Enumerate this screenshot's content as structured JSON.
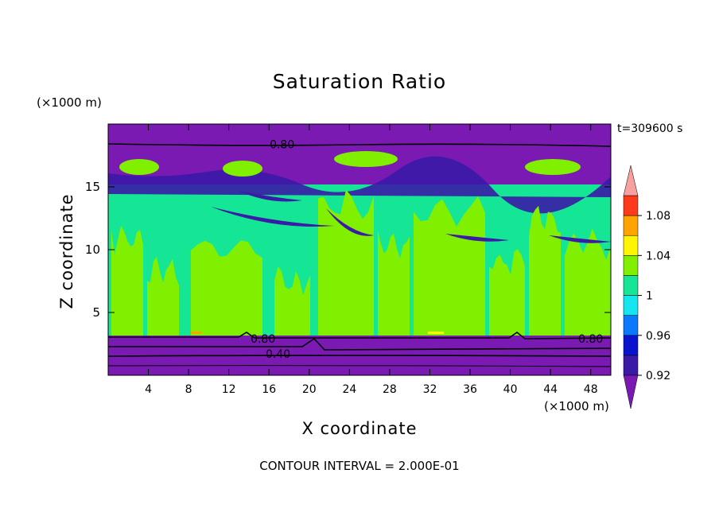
{
  "chart_data": {
    "type": "heatmap",
    "title": "Saturation Ratio",
    "xlabel": "X coordinate",
    "ylabel": "Z coordinate",
    "x_unit": "(×1000 m)",
    "y_unit": "(×1000 m)",
    "time_label": "t=309600 s",
    "footer": "CONTOUR INTERVAL = 2.000E-01",
    "xlim": [
      0,
      50
    ],
    "ylim": [
      0,
      20
    ],
    "x_ticks": [
      4,
      8,
      12,
      16,
      20,
      24,
      28,
      32,
      36,
      40,
      44,
      48
    ],
    "y_ticks": [
      5,
      10,
      15
    ],
    "colorbar": {
      "levels": [
        0.92,
        0.94,
        0.96,
        0.98,
        1,
        1.02,
        1.04,
        1.06,
        1.08,
        1.1
      ],
      "tick_labels": [
        "0.92",
        "0.96",
        "1",
        "1.04",
        "1.08"
      ],
      "tick_values": [
        0.92,
        0.96,
        1,
        1.04,
        1.08
      ],
      "colors": [
        "#7a1ab3",
        "#3a1aa6",
        "#0a14cc",
        "#0a78ff",
        "#14e6f0",
        "#14e696",
        "#80f000",
        "#fff500",
        "#ffa300",
        "#ff3a1a",
        "#f8a0a0"
      ],
      "extend": "both"
    },
    "contour_labels": [
      {
        "text": "0.80",
        "x": 17.3,
        "z": 18.4
      },
      {
        "text": "0.80",
        "x": 15.4,
        "z": 2.9
      },
      {
        "text": "0.40",
        "x": 16.9,
        "z": 1.7
      },
      {
        "text": "0.80",
        "x": 48.0,
        "z": 2.9
      }
    ]
  }
}
